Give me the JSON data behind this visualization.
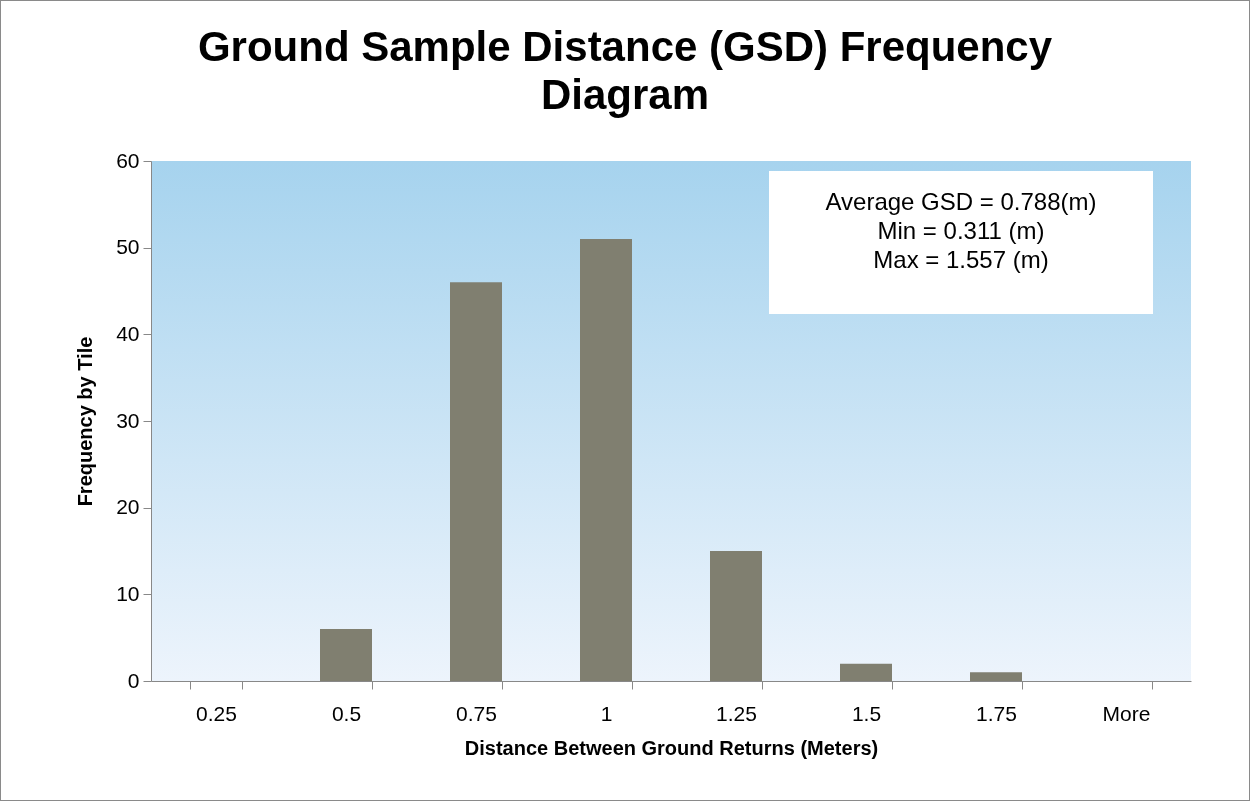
{
  "chart_data": {
    "type": "bar",
    "title": "Ground Sample Distance (GSD) Frequency Diagram",
    "xlabel": "Distance Between Ground Returns (Meters)",
    "ylabel": "Frequency by Tile",
    "categories": [
      "0.25",
      "0.5",
      "0.75",
      "1",
      "1.25",
      "1.5",
      "1.75",
      "More"
    ],
    "values": [
      0,
      6,
      46,
      51,
      15,
      2,
      1,
      0
    ],
    "color": "#807f70",
    "ylim": [
      0,
      60
    ],
    "yticks": [
      0,
      10,
      20,
      30,
      40,
      50,
      60
    ],
    "grid": false,
    "annotations": [
      "Average GSD = 0.788(m)",
      "Min = 0.311 (m)",
      "Max = 1.557 (m)"
    ]
  }
}
